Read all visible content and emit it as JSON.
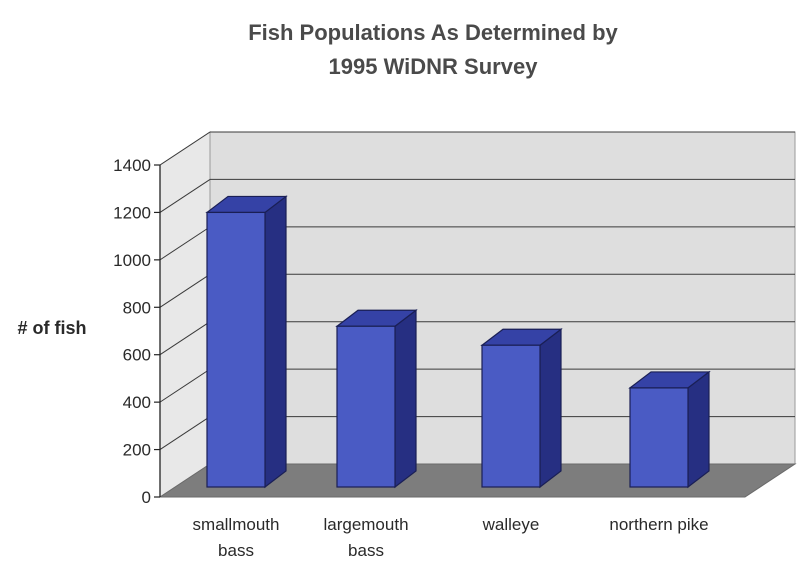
{
  "chart_data": {
    "type": "bar",
    "title": [
      "Fish Populations As Determined by",
      "1995 WiDNR Survey"
    ],
    "xlabel": "",
    "ylabel": "# of fish",
    "ylim": [
      0,
      1400
    ],
    "yticks": [
      "0",
      "200",
      "400",
      "600",
      "800",
      "1000",
      "1200",
      "1400"
    ],
    "categories": [
      [
        "smallmouth",
        "bass"
      ],
      [
        "largemouth",
        "bass"
      ],
      [
        "walleye"
      ],
      [
        "northern pike"
      ]
    ],
    "values": [
      1200,
      720,
      640,
      460
    ],
    "grid": true,
    "three_d": true,
    "legend": "none",
    "colors": {
      "bar_front": "#4a5bc4",
      "bar_side": "#262f82",
      "bar_top": "#3542a6",
      "wall": "#dedede",
      "floor": "#7d7d7d",
      "gridline": "#3a3a3a"
    }
  }
}
